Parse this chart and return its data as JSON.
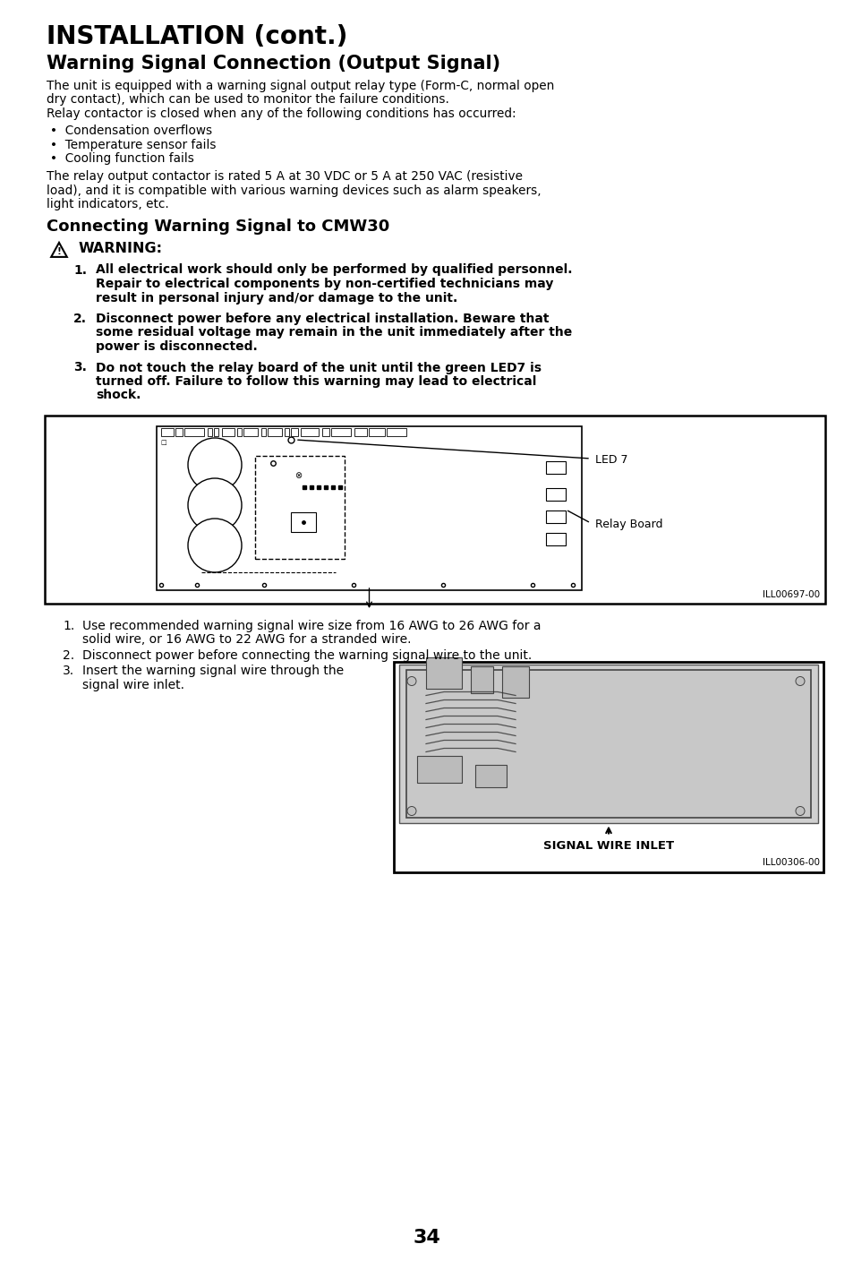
{
  "title1": "INSTALLATION (cont.)",
  "title2": "Warning Signal Connection (Output Signal)",
  "body1_line1": "The unit is equipped with a warning signal output relay type (Form-C, normal open",
  "body1_line2": "dry contact), which can be used to monitor the failure conditions.",
  "body1_line3": "Relay contactor is closed when any of the following conditions has occurred:",
  "bullets": [
    "Condensation overflows",
    "Temperature sensor fails",
    "Cooling function fails"
  ],
  "body2_line1": "The relay output contactor is rated 5 A at 30 VDC or 5 A at 250 VAC (resistive",
  "body2_line2": "load), and it is compatible with various warning devices such as alarm speakers,",
  "body2_line3": "light indicators, etc.",
  "subtitle": "Connecting Warning Signal to CMW30",
  "warning_label": "WARNING:",
  "warning_items": [
    "All electrical work should only be performed by qualified personnel.\nRepair to electrical components by non-certified technicians may\nresult in personal injury and/or damage to the unit.",
    "Disconnect power before any electrical installation. Beware that\nsome residual voltage may remain in the unit immediately after the\npower is disconnected.",
    "Do not touch the relay board of the unit until the green LED7 is\nturned off. Failure to follow this warning may lead to electrical\nshock."
  ],
  "diagram1_caption": "ILL00697-00",
  "steps_1_2": [
    "Use recommended warning signal wire size from 16 AWG to 26 AWG for a solid wire, or 16 AWG to 22 AWG for a stranded wire.",
    "Disconnect power before connecting the warning signal wire to the unit."
  ],
  "step3_line1": "Insert the warning signal wire through the",
  "step3_line2": "signal wire inlet.",
  "diagram2_caption": "ILL00306-00",
  "diagram2_label": "SIGNAL WIRE INLET",
  "page_number": "34",
  "bg_color": "#ffffff",
  "text_color": "#000000"
}
